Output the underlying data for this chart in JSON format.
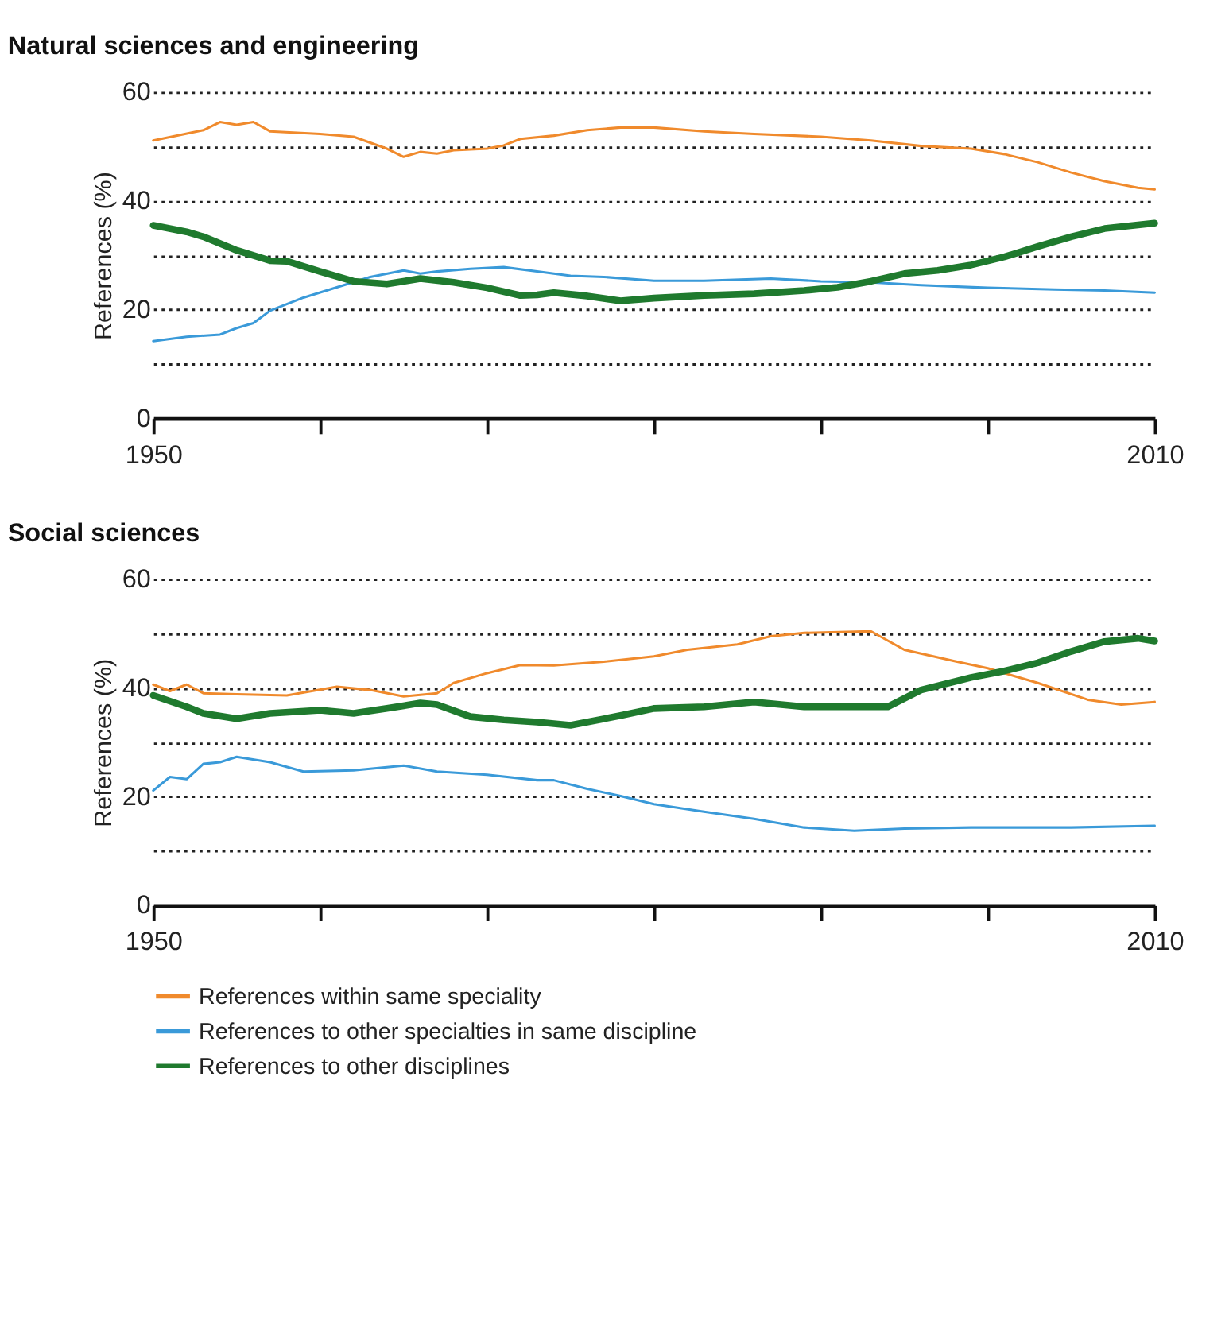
{
  "chart_data": [
    {
      "type": "line",
      "title": "Natural sciences and engineering",
      "ylabel": "References (%)",
      "xlim": [
        1950,
        2010
      ],
      "ylim": [
        0,
        60
      ],
      "xticks": [
        1950,
        {
          "value": 1960,
          "label": null
        },
        {
          "value": 1970,
          "label": null
        },
        {
          "value": 1980,
          "label": null
        },
        {
          "value": 1990,
          "label": null
        },
        {
          "value": 2000,
          "label": null
        },
        2010
      ],
      "yticks": [
        0,
        {
          "value": 10,
          "label": null
        },
        20,
        {
          "value": 30,
          "label": null
        },
        40,
        {
          "value": 50,
          "label": null
        },
        60
      ],
      "grid": "y",
      "legend": false,
      "marker": "none",
      "series": [
        {
          "color": "#f08a2c",
          "x": [
            1950,
            1953,
            1954,
            1955,
            1956,
            1957,
            1960,
            1962,
            1964,
            1965,
            1966,
            1967,
            1968,
            1970,
            1971,
            1972,
            1974,
            1976,
            1978,
            1980,
            1983,
            1986,
            1990,
            1993,
            1996,
            1999,
            2001,
            2003,
            2005,
            2007,
            2009,
            2010
          ],
          "values": [
            51.1,
            53,
            54.5,
            54,
            54.5,
            52.8,
            52.3,
            51.8,
            49.6,
            48.1,
            49,
            48.7,
            49.3,
            49.6,
            50.2,
            51.4,
            52,
            53,
            53.5,
            53.5,
            52.8,
            52.3,
            51.8,
            51.1,
            50.1,
            49.6,
            48.6,
            47.1,
            45.2,
            43.6,
            42.4,
            42.1
          ]
        },
        {
          "color": "#3a9ad9",
          "x": [
            1950,
            1952,
            1954,
            1955,
            1956,
            1957,
            1959,
            1961,
            1963,
            1965,
            1966,
            1967,
            1969,
            1971,
            1973,
            1975,
            1977,
            1980,
            1983,
            1987,
            1990,
            1993,
            1996,
            2000,
            2004,
            2007,
            2010
          ],
          "values": [
            14.2,
            15,
            15.4,
            16.6,
            17.5,
            19.8,
            22.2,
            24.1,
            26,
            27.2,
            26.6,
            27,
            27.5,
            27.8,
            27,
            26.2,
            26,
            25.3,
            25.3,
            25.7,
            25.2,
            25,
            24.5,
            24,
            23.7,
            23.5,
            23.1
          ]
        },
        {
          "color": "#1f7a2e",
          "x": [
            1950,
            1952,
            1953,
            1955,
            1957,
            1958,
            1960,
            1962,
            1964,
            1966,
            1968,
            1970,
            1972,
            1973,
            1974,
            1976,
            1978,
            1980,
            1983,
            1986,
            1989,
            1991,
            1993,
            1995,
            1997,
            1999,
            2001,
            2003,
            2005,
            2007,
            2010
          ],
          "values": [
            35.5,
            34.3,
            33.4,
            30.9,
            29,
            28.9,
            27,
            25.2,
            24.7,
            25.7,
            25,
            24,
            22.6,
            22.7,
            23.1,
            22.5,
            21.6,
            22.1,
            22.6,
            22.9,
            23.5,
            24.1,
            25.2,
            26.6,
            27.2,
            28.2,
            29.7,
            31.6,
            33.4,
            34.9,
            35.9
          ]
        }
      ]
    },
    {
      "type": "line",
      "title": "Social sciences",
      "ylabel": "References (%)",
      "xlim": [
        1950,
        2010
      ],
      "ylim": [
        0,
        60
      ],
      "xticks": [
        1950,
        {
          "value": 1960,
          "label": null
        },
        {
          "value": 1970,
          "label": null
        },
        {
          "value": 1980,
          "label": null
        },
        {
          "value": 1990,
          "label": null
        },
        {
          "value": 2000,
          "label": null
        },
        2010
      ],
      "yticks": [
        0,
        {
          "value": 10,
          "label": null
        },
        20,
        {
          "value": 30,
          "label": null
        },
        40,
        {
          "value": 50,
          "label": null
        },
        60
      ],
      "grid": "y",
      "legend": "bottom",
      "marker": "none",
      "series": [
        {
          "name": "References within same speciality",
          "color": "#f08a2c",
          "x": [
            1950,
            1951,
            1952,
            1953,
            1955,
            1958,
            1961,
            1963,
            1965,
            1967,
            1968,
            1970,
            1972,
            1974,
            1977,
            1980,
            1982,
            1985,
            1987,
            1989,
            1993,
            1995,
            1998,
            2000,
            2003,
            2006,
            2008,
            2010
          ],
          "values": [
            40.6,
            39.4,
            40.6,
            39,
            38.8,
            38.6,
            40.2,
            39.6,
            38.4,
            39,
            40.9,
            42.7,
            44.2,
            44.1,
            44.8,
            45.8,
            47,
            48,
            49.5,
            50.1,
            50.4,
            47,
            44.9,
            43.6,
            40.9,
            37.8,
            36.9,
            37.4
          ]
        },
        {
          "name": "References to other specialties in same discipline",
          "color": "#3a9ad9",
          "x": [
            1950,
            1951,
            1952,
            1953,
            1954,
            1955,
            1957,
            1959,
            1962,
            1965,
            1967,
            1970,
            1973,
            1974,
            1976,
            1978,
            1980,
            1983,
            1986,
            1989,
            1992,
            1995,
            1999,
            2005,
            2010
          ],
          "values": [
            21.1,
            23.6,
            23.2,
            26,
            26.3,
            27.3,
            26.3,
            24.6,
            24.8,
            25.7,
            24.6,
            24,
            23,
            23,
            21.4,
            20.1,
            18.6,
            17.2,
            15.9,
            14.3,
            13.7,
            14.1,
            14.3,
            14.3,
            14.6
          ]
        },
        {
          "name": "References to other disciplines",
          "color": "#1f7a2e",
          "x": [
            1950,
            1952,
            1953,
            1955,
            1957,
            1960,
            1962,
            1964,
            1966,
            1967,
            1969,
            1971,
            1973,
            1975,
            1978,
            1980,
            1983,
            1986,
            1989,
            1992,
            1994,
            1996,
            1999,
            2001,
            2003,
            2005,
            2007,
            2009,
            2010
          ],
          "values": [
            38.6,
            36.5,
            35.3,
            34.3,
            35.3,
            35.9,
            35.3,
            36.2,
            37.2,
            36.9,
            34.7,
            34.1,
            33.7,
            33.1,
            34.9,
            36.2,
            36.5,
            37.4,
            36.5,
            36.5,
            36.5,
            39.6,
            41.9,
            43.1,
            44.6,
            46.7,
            48.5,
            49.1,
            48.6
          ]
        }
      ]
    }
  ]
}
